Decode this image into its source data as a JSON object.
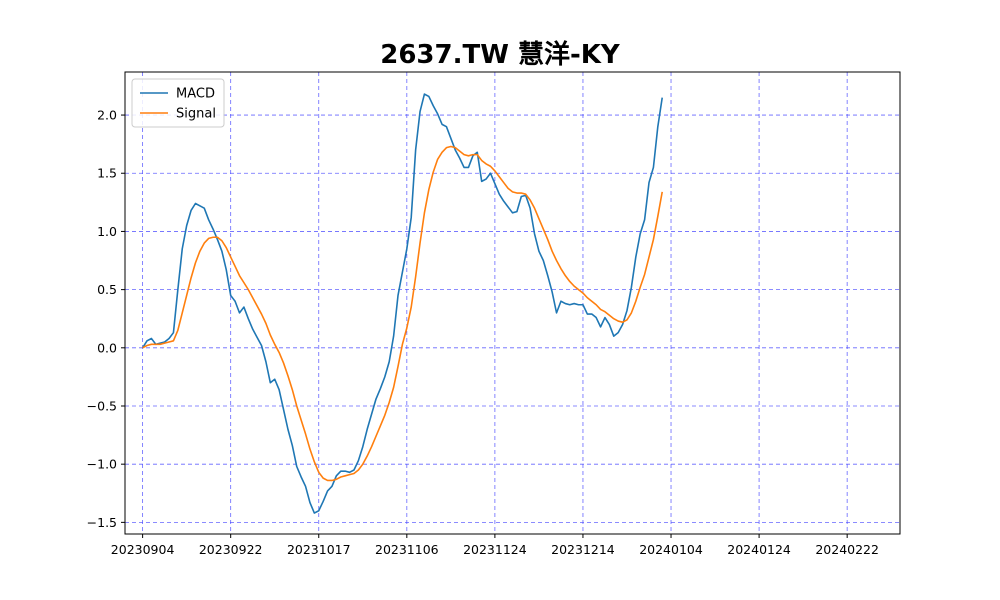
{
  "chart_data": {
    "type": "line",
    "title": "2637.TW 慧洋-KY",
    "xlabel": "",
    "ylabel": "",
    "grid": true,
    "grid_color": "#4b4bff",
    "legend_placement": "top-left",
    "xlim": [
      -4,
      172
    ],
    "ylim": [
      -1.6,
      2.37
    ],
    "x_ticks": [
      {
        "index": 0,
        "label": "20230904"
      },
      {
        "index": 20,
        "label": "20230922"
      },
      {
        "index": 40,
        "label": "20231017"
      },
      {
        "index": 60,
        "label": "20231106"
      },
      {
        "index": 80,
        "label": "20231124"
      },
      {
        "index": 100,
        "label": "20231214"
      },
      {
        "index": 120,
        "label": "20240104"
      },
      {
        "index": 140,
        "label": "20240124"
      },
      {
        "index": 160,
        "label": "20240222"
      }
    ],
    "y_ticks": [
      -1.5,
      -1.0,
      -0.5,
      0.0,
      0.5,
      1.0,
      1.5,
      2.0
    ],
    "y_tick_labels": [
      "−1.5",
      "−1.0",
      "−0.5",
      "0.0",
      "0.5",
      "1.0",
      "1.5",
      "2.0"
    ],
    "series": [
      {
        "name": "MACD",
        "color": "#1f77b4",
        "points": [
          [
            0,
            0.0
          ],
          [
            1,
            0.06
          ],
          [
            2,
            0.08
          ],
          [
            3,
            0.03
          ],
          [
            4,
            0.04
          ],
          [
            5,
            0.05
          ],
          [
            6,
            0.08
          ],
          [
            7,
            0.13
          ],
          [
            8,
            0.5
          ],
          [
            9,
            0.85
          ],
          [
            10,
            1.05
          ],
          [
            11,
            1.18
          ],
          [
            12,
            1.24
          ],
          [
            13,
            1.22
          ],
          [
            14,
            1.2
          ],
          [
            15,
            1.1
          ],
          [
            16,
            1.02
          ],
          [
            17,
            0.93
          ],
          [
            18,
            0.83
          ],
          [
            19,
            0.67
          ],
          [
            20,
            0.45
          ],
          [
            21,
            0.4
          ],
          [
            22,
            0.3
          ],
          [
            23,
            0.35
          ],
          [
            24,
            0.25
          ],
          [
            25,
            0.16
          ],
          [
            26,
            0.09
          ],
          [
            27,
            0.02
          ],
          [
            28,
            -0.12
          ],
          [
            29,
            -0.3
          ],
          [
            30,
            -0.27
          ],
          [
            31,
            -0.36
          ],
          [
            32,
            -0.53
          ],
          [
            33,
            -0.7
          ],
          [
            34,
            -0.84
          ],
          [
            35,
            -1.02
          ],
          [
            36,
            -1.11
          ],
          [
            37,
            -1.19
          ],
          [
            38,
            -1.33
          ],
          [
            39,
            -1.42
          ],
          [
            40,
            -1.4
          ],
          [
            41,
            -1.32
          ],
          [
            42,
            -1.23
          ],
          [
            43,
            -1.19
          ],
          [
            44,
            -1.1
          ],
          [
            45,
            -1.06
          ],
          [
            46,
            -1.06
          ],
          [
            47,
            -1.07
          ],
          [
            48,
            -1.05
          ],
          [
            49,
            -0.97
          ],
          [
            50,
            -0.85
          ],
          [
            51,
            -0.7
          ],
          [
            52,
            -0.57
          ],
          [
            53,
            -0.44
          ],
          [
            54,
            -0.35
          ],
          [
            55,
            -0.25
          ],
          [
            56,
            -0.12
          ],
          [
            57,
            0.1
          ],
          [
            58,
            0.45
          ],
          [
            59,
            0.65
          ],
          [
            60,
            0.85
          ],
          [
            61,
            1.12
          ],
          [
            62,
            1.7
          ],
          [
            63,
            2.03
          ],
          [
            64,
            2.18
          ],
          [
            65,
            2.16
          ],
          [
            66,
            2.08
          ],
          [
            67,
            2.01
          ],
          [
            68,
            1.92
          ],
          [
            69,
            1.9
          ],
          [
            70,
            1.8
          ],
          [
            71,
            1.7
          ],
          [
            72,
            1.63
          ],
          [
            73,
            1.55
          ],
          [
            74,
            1.55
          ],
          [
            75,
            1.65
          ],
          [
            76,
            1.68
          ],
          [
            77,
            1.43
          ],
          [
            78,
            1.45
          ],
          [
            79,
            1.5
          ],
          [
            80,
            1.41
          ],
          [
            81,
            1.32
          ],
          [
            82,
            1.26
          ],
          [
            83,
            1.21
          ],
          [
            84,
            1.16
          ],
          [
            85,
            1.17
          ],
          [
            86,
            1.3
          ],
          [
            87,
            1.31
          ],
          [
            88,
            1.2
          ],
          [
            89,
            0.98
          ],
          [
            90,
            0.83
          ],
          [
            91,
            0.75
          ],
          [
            92,
            0.62
          ],
          [
            93,
            0.48
          ],
          [
            94,
            0.3
          ],
          [
            95,
            0.4
          ],
          [
            96,
            0.38
          ],
          [
            97,
            0.37
          ],
          [
            98,
            0.38
          ],
          [
            99,
            0.37
          ],
          [
            100,
            0.37
          ],
          [
            101,
            0.29
          ],
          [
            102,
            0.29
          ],
          [
            103,
            0.26
          ],
          [
            104,
            0.18
          ],
          [
            105,
            0.26
          ],
          [
            106,
            0.2
          ],
          [
            107,
            0.1
          ],
          [
            108,
            0.13
          ],
          [
            109,
            0.2
          ],
          [
            110,
            0.32
          ],
          [
            111,
            0.52
          ],
          [
            112,
            0.78
          ],
          [
            113,
            0.98
          ],
          [
            114,
            1.1
          ],
          [
            115,
            1.42
          ],
          [
            116,
            1.55
          ],
          [
            117,
            1.9
          ],
          [
            118,
            2.15
          ]
        ]
      },
      {
        "name": "Signal",
        "color": "#ff7f0e",
        "points": [
          [
            0,
            0.0
          ],
          [
            1,
            0.02
          ],
          [
            2,
            0.03
          ],
          [
            3,
            0.03
          ],
          [
            4,
            0.03
          ],
          [
            5,
            0.04
          ],
          [
            6,
            0.05
          ],
          [
            7,
            0.06
          ],
          [
            8,
            0.15
          ],
          [
            9,
            0.3
          ],
          [
            10,
            0.45
          ],
          [
            11,
            0.6
          ],
          [
            12,
            0.73
          ],
          [
            13,
            0.83
          ],
          [
            14,
            0.9
          ],
          [
            15,
            0.94
          ],
          [
            16,
            0.95
          ],
          [
            17,
            0.95
          ],
          [
            18,
            0.92
          ],
          [
            19,
            0.86
          ],
          [
            20,
            0.78
          ],
          [
            21,
            0.7
          ],
          [
            22,
            0.62
          ],
          [
            23,
            0.56
          ],
          [
            24,
            0.5
          ],
          [
            25,
            0.43
          ],
          [
            26,
            0.36
          ],
          [
            27,
            0.29
          ],
          [
            28,
            0.21
          ],
          [
            29,
            0.11
          ],
          [
            30,
            0.03
          ],
          [
            31,
            -0.04
          ],
          [
            32,
            -0.13
          ],
          [
            33,
            -0.24
          ],
          [
            34,
            -0.36
          ],
          [
            35,
            -0.5
          ],
          [
            36,
            -0.62
          ],
          [
            37,
            -0.74
          ],
          [
            38,
            -0.87
          ],
          [
            39,
            -0.98
          ],
          [
            40,
            -1.07
          ],
          [
            41,
            -1.12
          ],
          [
            42,
            -1.14
          ],
          [
            43,
            -1.14
          ],
          [
            44,
            -1.13
          ],
          [
            45,
            -1.11
          ],
          [
            46,
            -1.1
          ],
          [
            47,
            -1.09
          ],
          [
            48,
            -1.08
          ],
          [
            49,
            -1.05
          ],
          [
            50,
            -1.0
          ],
          [
            51,
            -0.93
          ],
          [
            52,
            -0.85
          ],
          [
            53,
            -0.76
          ],
          [
            54,
            -0.67
          ],
          [
            55,
            -0.58
          ],
          [
            56,
            -0.47
          ],
          [
            57,
            -0.34
          ],
          [
            58,
            -0.16
          ],
          [
            59,
            0.03
          ],
          [
            60,
            0.17
          ],
          [
            61,
            0.35
          ],
          [
            62,
            0.61
          ],
          [
            63,
            0.9
          ],
          [
            64,
            1.16
          ],
          [
            65,
            1.36
          ],
          [
            66,
            1.51
          ],
          [
            67,
            1.62
          ],
          [
            68,
            1.68
          ],
          [
            69,
            1.72
          ],
          [
            70,
            1.73
          ],
          [
            71,
            1.72
          ],
          [
            72,
            1.69
          ],
          [
            73,
            1.66
          ],
          [
            74,
            1.65
          ],
          [
            75,
            1.66
          ],
          [
            76,
            1.66
          ],
          [
            77,
            1.61
          ],
          [
            78,
            1.58
          ],
          [
            79,
            1.56
          ],
          [
            80,
            1.52
          ],
          [
            81,
            1.47
          ],
          [
            82,
            1.42
          ],
          [
            83,
            1.37
          ],
          [
            84,
            1.34
          ],
          [
            85,
            1.33
          ],
          [
            86,
            1.33
          ],
          [
            87,
            1.32
          ],
          [
            88,
            1.27
          ],
          [
            89,
            1.2
          ],
          [
            90,
            1.11
          ],
          [
            91,
            1.02
          ],
          [
            92,
            0.93
          ],
          [
            93,
            0.83
          ],
          [
            94,
            0.75
          ],
          [
            95,
            0.68
          ],
          [
            96,
            0.62
          ],
          [
            97,
            0.57
          ],
          [
            98,
            0.53
          ],
          [
            99,
            0.5
          ],
          [
            100,
            0.47
          ],
          [
            101,
            0.43
          ],
          [
            102,
            0.4
          ],
          [
            103,
            0.37
          ],
          [
            104,
            0.33
          ],
          [
            105,
            0.31
          ],
          [
            106,
            0.28
          ],
          [
            107,
            0.25
          ],
          [
            108,
            0.23
          ],
          [
            109,
            0.22
          ],
          [
            110,
            0.24
          ],
          [
            111,
            0.3
          ],
          [
            112,
            0.4
          ],
          [
            113,
            0.52
          ],
          [
            114,
            0.63
          ],
          [
            115,
            0.78
          ],
          [
            116,
            0.93
          ],
          [
            117,
            1.13
          ],
          [
            118,
            1.34
          ]
        ]
      }
    ]
  }
}
